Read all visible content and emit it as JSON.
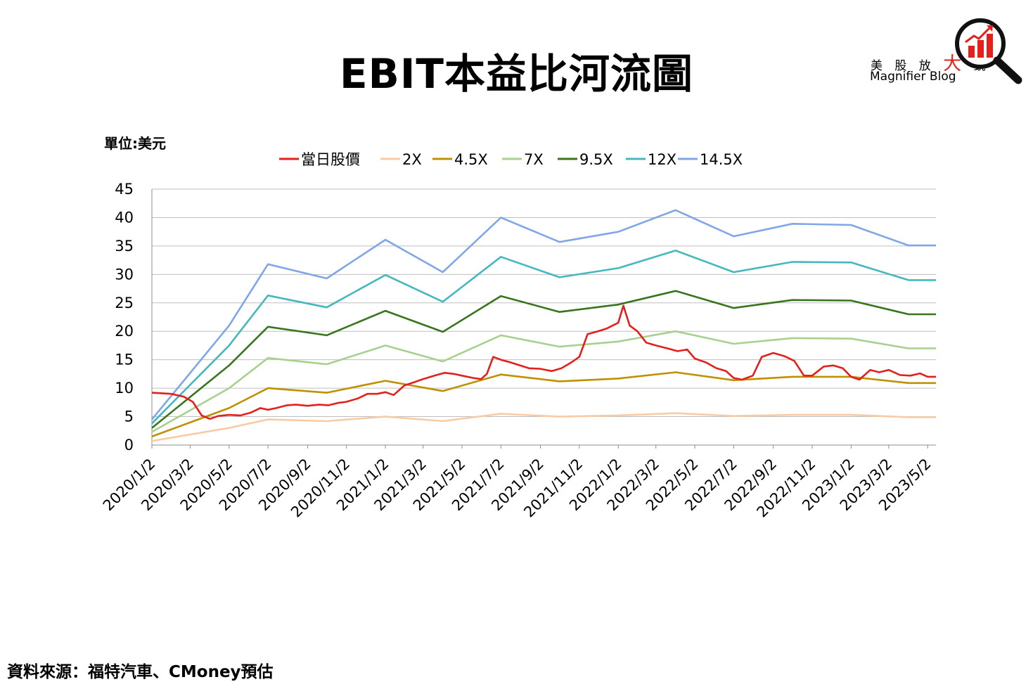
{
  "title": "EBIT本益比河流圖",
  "unit_label": "單位:美元",
  "source": "資料來源：福特汽車、CMoney預估",
  "logo": {
    "cn_part1": "美 股 放 ",
    "cn_big": "大",
    "cn_part2": " 鏡",
    "en": "Magnifier Blog",
    "icon": "magnifier-bar-chart-icon"
  },
  "chart_data": {
    "type": "line",
    "title": "EBIT本益比河流圖",
    "ylabel": "單位:美元",
    "xlabel": "",
    "ylim": [
      0,
      45
    ],
    "yticks": [
      0,
      5,
      10,
      15,
      20,
      25,
      30,
      35,
      40,
      45
    ],
    "grid": true,
    "legend_position": "top",
    "x_tick_labels": [
      "2020/1/2",
      "2020/3/2",
      "2020/5/2",
      "2020/7/2",
      "2020/9/2",
      "2020/11/2",
      "2021/1/2",
      "2021/3/2",
      "2021/5/2",
      "2021/7/2",
      "2021/9/2",
      "2021/11/2",
      "2022/1/2",
      "2022/3/2",
      "2022/5/2",
      "2022/7/2",
      "2022/9/2",
      "2022/11/2",
      "2023/1/2",
      "2023/3/2",
      "2023/5/2"
    ],
    "series": [
      {
        "name": "當日股價",
        "color": "#e3201b",
        "x": [
          "2020/1/2",
          "2020/2/1",
          "2020/2/21",
          "2020/3/6",
          "2020/3/20",
          "2020/4/2",
          "2020/4/15",
          "2020/5/2",
          "2020/5/20",
          "2020/6/5",
          "2020/6/20",
          "2020/7/2",
          "2020/7/15",
          "2020/8/1",
          "2020/8/15",
          "2020/9/2",
          "2020/9/20",
          "2020/10/5",
          "2020/10/20",
          "2020/11/2",
          "2020/11/20",
          "2020/12/5",
          "2020/12/20",
          "2021/1/2",
          "2021/1/15",
          "2021/2/1",
          "2021/2/15",
          "2021/3/2",
          "2021/3/20",
          "2021/4/5",
          "2021/4/20",
          "2021/5/2",
          "2021/5/20",
          "2021/6/1",
          "2021/6/10",
          "2021/6/20",
          "2021/7/2",
          "2021/7/15",
          "2021/8/1",
          "2021/8/15",
          "2021/9/2",
          "2021/9/20",
          "2021/10/5",
          "2021/10/20",
          "2021/11/2",
          "2021/11/15",
          "2021/12/1",
          "2021/12/15",
          "2022/1/2",
          "2022/1/10",
          "2022/1/20",
          "2022/2/1",
          "2022/2/15",
          "2022/3/2",
          "2022/3/20",
          "2022/4/5",
          "2022/4/20",
          "2022/5/2",
          "2022/5/20",
          "2022/6/5",
          "2022/6/20",
          "2022/7/2",
          "2022/7/15",
          "2022/8/1",
          "2022/8/15",
          "2022/9/2",
          "2022/9/20",
          "2022/10/5",
          "2022/10/20",
          "2022/11/2",
          "2022/11/20",
          "2022/12/5",
          "2022/12/20",
          "2023/1/2",
          "2023/1/15",
          "2023/2/1",
          "2023/2/15",
          "2023/3/2",
          "2023/3/20",
          "2023/4/5",
          "2023/4/20",
          "2023/5/2",
          "2023/5/15"
        ],
        "y": [
          9.2,
          9.0,
          8.5,
          7.6,
          5.2,
          4.6,
          5.1,
          5.3,
          5.2,
          5.7,
          6.5,
          6.2,
          6.5,
          7.0,
          7.1,
          6.9,
          7.1,
          7.0,
          7.4,
          7.6,
          8.2,
          9.0,
          9.0,
          9.3,
          8.8,
          10.5,
          11.0,
          11.6,
          12.2,
          12.7,
          12.5,
          12.2,
          11.8,
          11.6,
          12.5,
          15.5,
          15.0,
          14.6,
          14.0,
          13.5,
          13.4,
          13.0,
          13.5,
          14.5,
          15.5,
          19.5,
          20.0,
          20.5,
          21.5,
          24.5,
          21.0,
          20.0,
          18.0,
          17.5,
          17.0,
          16.5,
          16.8,
          15.2,
          14.5,
          13.5,
          13.0,
          11.8,
          11.5,
          12.2,
          15.5,
          16.2,
          15.6,
          14.8,
          12.2,
          12.2,
          13.8,
          14.0,
          13.5,
          12.0,
          11.5,
          13.2,
          12.8,
          13.2,
          12.3,
          12.2,
          12.6,
          12.0,
          12.0
        ]
      },
      {
        "name": "2X",
        "color": "#f8cba4",
        "x": [
          "2020/1/2",
          "2020/5/2",
          "2020/7/2",
          "2020/10/2",
          "2021/1/2",
          "2021/4/2",
          "2021/7/2",
          "2021/10/2",
          "2022/1/2",
          "2022/4/2",
          "2022/7/2",
          "2022/10/2",
          "2023/1/2",
          "2023/4/2",
          "2023/5/15"
        ],
        "y": [
          0.7,
          3.0,
          4.5,
          4.2,
          5.0,
          4.2,
          5.5,
          5.0,
          5.2,
          5.6,
          5.1,
          5.3,
          5.3,
          4.9,
          4.9
        ]
      },
      {
        "name": "4.5X",
        "color": "#bf9000",
        "x": [
          "2020/1/2",
          "2020/5/2",
          "2020/7/2",
          "2020/10/2",
          "2021/1/2",
          "2021/4/2",
          "2021/7/2",
          "2021/10/2",
          "2022/1/2",
          "2022/4/2",
          "2022/7/2",
          "2022/10/2",
          "2023/1/2",
          "2023/4/2",
          "2023/5/15"
        ],
        "y": [
          1.5,
          6.5,
          10.0,
          9.2,
          11.3,
          9.5,
          12.4,
          11.2,
          11.7,
          12.8,
          11.4,
          12.0,
          12.0,
          10.9,
          10.9
        ]
      },
      {
        "name": "7X",
        "color": "#a9d18e",
        "x": [
          "2020/1/2",
          "2020/5/2",
          "2020/7/2",
          "2020/10/2",
          "2021/1/2",
          "2021/4/2",
          "2021/7/2",
          "2021/10/2",
          "2022/1/2",
          "2022/4/2",
          "2022/7/2",
          "2022/10/2",
          "2023/1/2",
          "2023/4/2",
          "2023/5/15"
        ],
        "y": [
          2.3,
          10.0,
          15.3,
          14.2,
          17.5,
          14.7,
          19.3,
          17.3,
          18.2,
          20.0,
          17.8,
          18.8,
          18.7,
          17.0,
          17.0
        ]
      },
      {
        "name": "9.5X",
        "color": "#38761d",
        "x": [
          "2020/1/2",
          "2020/5/2",
          "2020/7/2",
          "2020/10/2",
          "2021/1/2",
          "2021/4/2",
          "2021/7/2",
          "2021/10/2",
          "2022/1/2",
          "2022/4/2",
          "2022/7/2",
          "2022/10/2",
          "2023/1/2",
          "2023/4/2",
          "2023/5/15"
        ],
        "y": [
          3.0,
          14.0,
          20.8,
          19.3,
          23.6,
          19.9,
          26.2,
          23.4,
          24.7,
          27.1,
          24.1,
          25.5,
          25.4,
          23.0,
          23.0
        ]
      },
      {
        "name": "12X",
        "color": "#45b8bd",
        "x": [
          "2020/1/2",
          "2020/5/2",
          "2020/7/2",
          "2020/10/2",
          "2021/1/2",
          "2021/4/2",
          "2021/7/2",
          "2021/10/2",
          "2022/1/2",
          "2022/4/2",
          "2022/7/2",
          "2022/10/2",
          "2023/1/2",
          "2023/4/2",
          "2023/5/15"
        ],
        "y": [
          3.8,
          17.5,
          26.3,
          24.2,
          29.9,
          25.2,
          33.1,
          29.5,
          31.1,
          34.2,
          30.4,
          32.2,
          32.1,
          29.0,
          29.0
        ]
      },
      {
        "name": "14.5X",
        "color": "#7fa7e8",
        "x": [
          "2020/1/2",
          "2020/5/2",
          "2020/7/2",
          "2020/10/2",
          "2021/1/2",
          "2021/4/2",
          "2021/7/2",
          "2021/10/2",
          "2022/1/2",
          "2022/4/2",
          "2022/7/2",
          "2022/10/2",
          "2023/1/2",
          "2023/4/2",
          "2023/5/15"
        ],
        "y": [
          4.5,
          21.0,
          31.8,
          29.3,
          36.1,
          30.4,
          40.0,
          35.7,
          37.5,
          41.3,
          36.7,
          38.9,
          38.7,
          35.1,
          35.1
        ]
      }
    ]
  }
}
